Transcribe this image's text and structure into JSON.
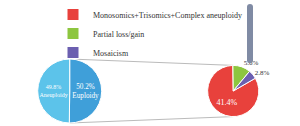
{
  "chart_data": [
    {
      "type": "pie",
      "categories": [
        "Euploidy",
        "Aneuploidy"
      ],
      "values": [
        50.2,
        49.8
      ],
      "value_labels": [
        "50.2%",
        "49.8%"
      ],
      "colors": [
        "#3f9fd9",
        "#5cc3ea"
      ],
      "data_labels": true
    },
    {
      "type": "pie",
      "categories": [
        "Monosomics+Trisomics+Complex aneuploidy",
        "Partial loss/gain",
        "Mosaicism"
      ],
      "values": [
        41.4,
        5.6,
        2.8
      ],
      "value_labels": [
        "41.4%",
        "5.6%",
        "2.8%"
      ],
      "colors": [
        "#e8413c",
        "#8dc63f",
        "#6b5fb0"
      ],
      "data_labels": true,
      "legend": "top"
    }
  ]
}
